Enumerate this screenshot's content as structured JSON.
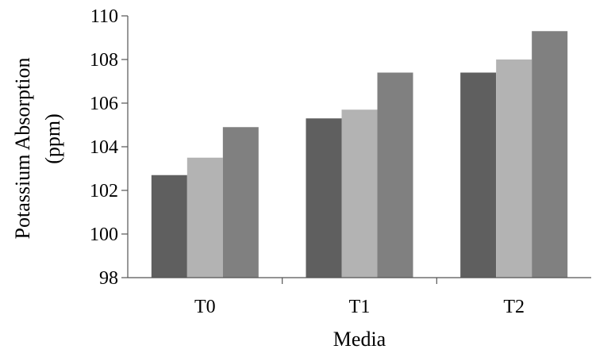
{
  "chart_data": {
    "type": "bar",
    "title": "",
    "xlabel": "Media",
    "ylabel_lines": [
      "Potassium Absorption",
      "(ppm)"
    ],
    "categories": [
      "T0",
      "T1",
      "T2"
    ],
    "ylim": [
      98,
      110
    ],
    "yticks": [
      98,
      100,
      102,
      104,
      106,
      108,
      110
    ],
    "grid": false,
    "series": [
      {
        "color": "#5f5f5f",
        "values": [
          102.7,
          105.3,
          107.4
        ]
      },
      {
        "color": "#b3b3b3",
        "values": [
          103.5,
          105.7,
          108.0
        ]
      },
      {
        "color": "#808080",
        "values": [
          104.9,
          107.4,
          109.3
        ]
      }
    ]
  }
}
